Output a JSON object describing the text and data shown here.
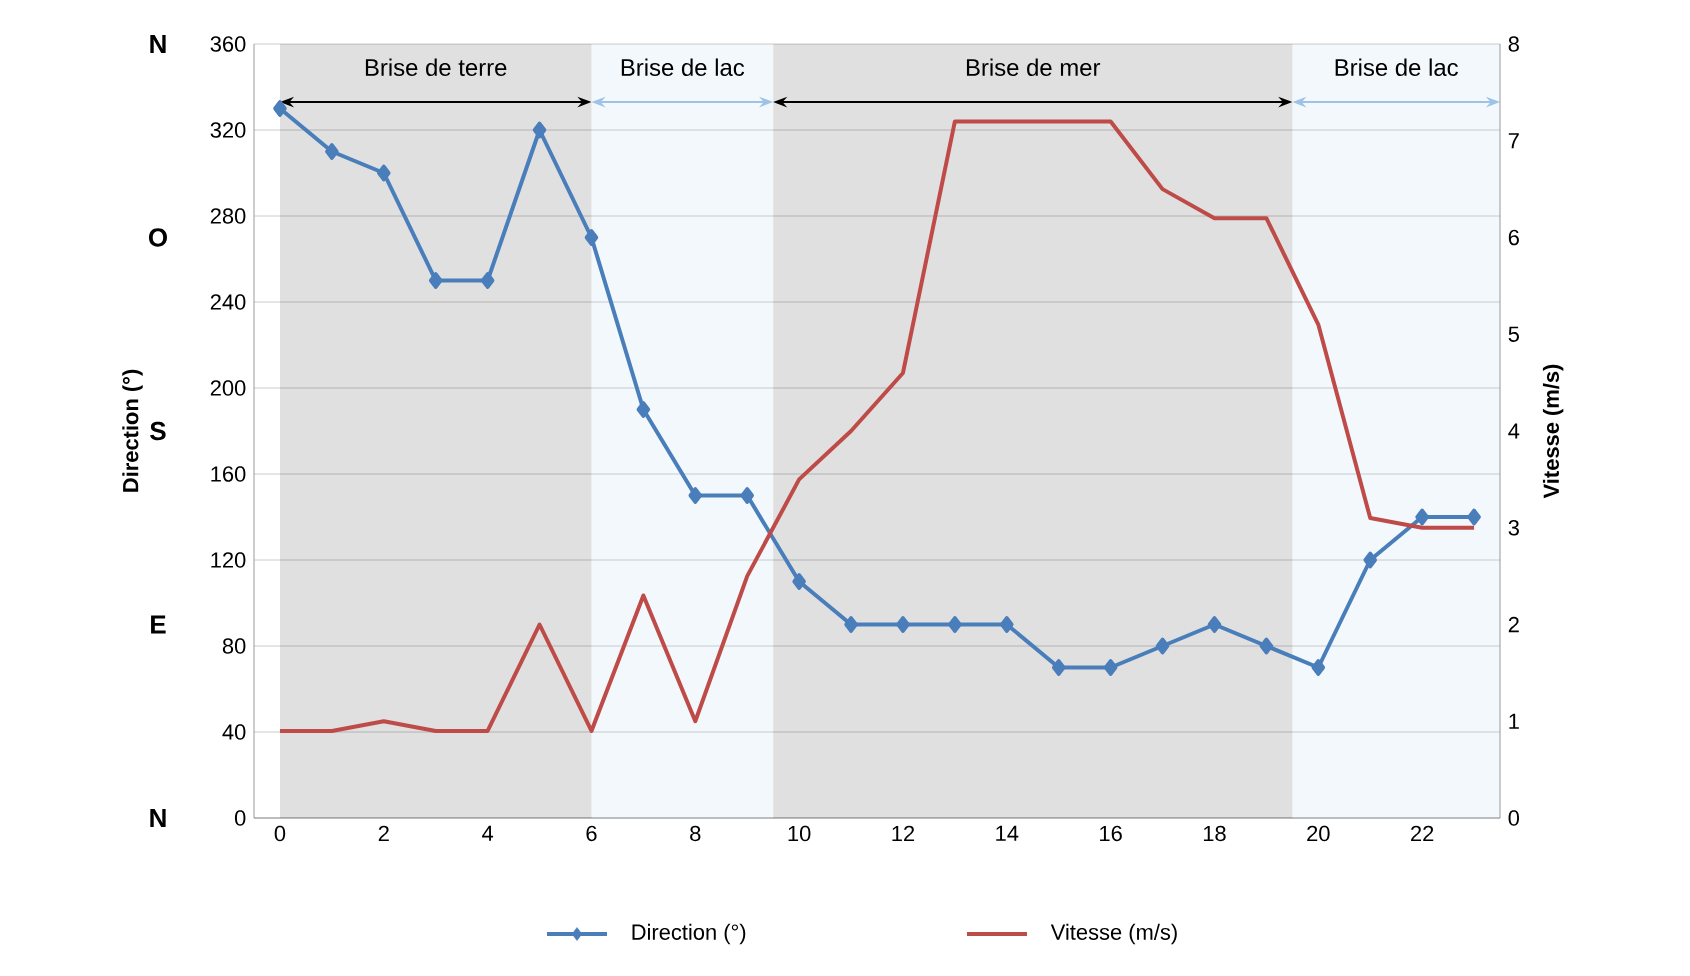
{
  "chart_data": {
    "type": "line",
    "ylabel": "Direction (°)",
    "y2label": "Vitesse (m/s)",
    "x": [
      0,
      1,
      2,
      3,
      4,
      5,
      6,
      7,
      8,
      9,
      10,
      11,
      12,
      13,
      14,
      15,
      16,
      17,
      18,
      19,
      20,
      21,
      22,
      23
    ],
    "xlim": [
      -0.5,
      23.5
    ],
    "xticks": [
      0,
      2,
      4,
      6,
      8,
      10,
      12,
      14,
      16,
      18,
      20,
      22
    ],
    "ylim": [
      0,
      360
    ],
    "yticks": [
      0,
      40,
      80,
      120,
      160,
      200,
      240,
      280,
      320,
      360
    ],
    "y2lim": [
      0,
      8
    ],
    "y2ticks": [
      0,
      1,
      2,
      3,
      4,
      5,
      6,
      7,
      8
    ],
    "series": [
      {
        "name": "Direction (°)",
        "color": "#4a7ebb",
        "marker": "diamond",
        "values": [
          330,
          310,
          300,
          250,
          250,
          320,
          270,
          190,
          150,
          150,
          110,
          90,
          90,
          90,
          90,
          70,
          70,
          80,
          90,
          80,
          70,
          120,
          140,
          140
        ]
      },
      {
        "name": "Vitesse (m/s)",
        "color": "#be4b48",
        "marker": "none",
        "axis": "y2",
        "values": [
          0.9,
          0.9,
          1.0,
          0.9,
          0.9,
          2.0,
          0.9,
          2.3,
          1.0,
          2.5,
          3.5,
          4.0,
          4.6,
          7.2,
          7.2,
          7.2,
          7.2,
          6.5,
          6.2,
          6.2,
          5.1,
          3.1,
          3.0,
          3.0
        ]
      }
    ],
    "bands": [
      {
        "axis": "x",
        "from": 0,
        "to": 6,
        "label": "Brise de terre",
        "color": "#000000"
      },
      {
        "axis": "x",
        "from": 6,
        "to": 9.5,
        "label": "Brise de lac",
        "color": "#9dc3e6"
      },
      {
        "axis": "x",
        "from": 9.5,
        "to": 19.5,
        "label": "Brise de mer",
        "color": "#000000"
      },
      {
        "axis": "x",
        "from": 19.5,
        "to": 23.5,
        "label": "Brise de lac",
        "color": "#9dc3e6"
      }
    ],
    "annotations": [
      "N",
      "O",
      "S",
      "E",
      "N"
    ],
    "grid": "y",
    "legend": "bottom"
  }
}
